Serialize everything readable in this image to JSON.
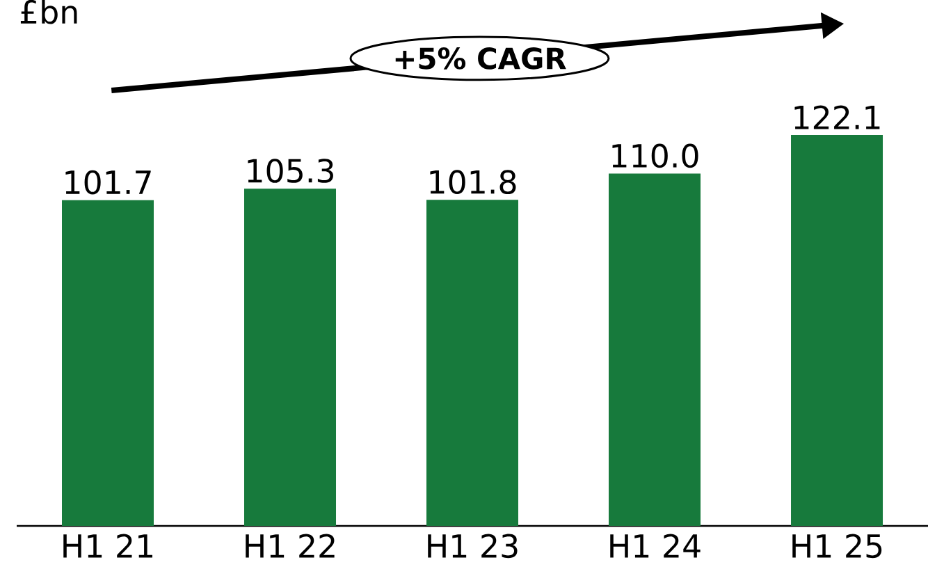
{
  "chart_data": {
    "type": "bar",
    "ylabel": "£bn",
    "categories": [
      "H1 21",
      "H1 22",
      "H1 23",
      "H1 24",
      "H1 25"
    ],
    "values": [
      101.7,
      105.3,
      101.8,
      110.0,
      122.1
    ],
    "color": "#177a3c",
    "value_labels": [
      "101.7",
      "105.3",
      "101.8",
      "110.0",
      "122.1"
    ],
    "annotations": [
      "+5% CAGR"
    ]
  }
}
